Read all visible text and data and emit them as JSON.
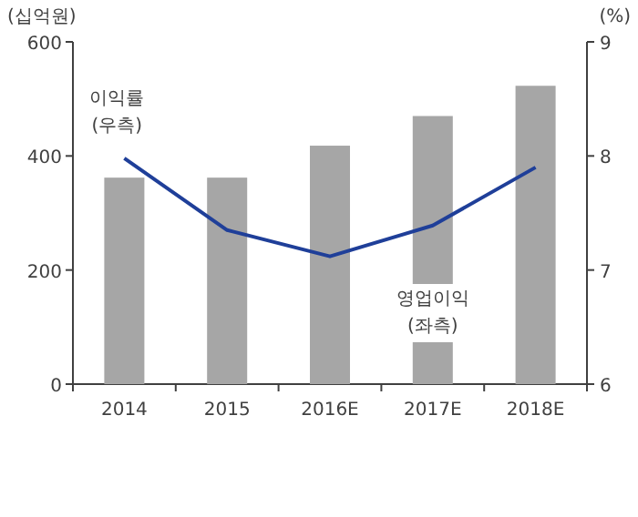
{
  "chart_data": {
    "type": "bar",
    "categories": [
      "2014",
      "2015",
      "2016E",
      "2017E",
      "2018E"
    ],
    "ylabel": "(십억원)",
    "y2label": "(%)",
    "ylim": [
      0,
      600
    ],
    "yticks": [
      0,
      200,
      400,
      600
    ],
    "y2lim": [
      6,
      9
    ],
    "y2ticks": [
      6,
      7,
      8,
      9
    ],
    "grid": false,
    "series": [
      {
        "name": "영업이익 (좌측)",
        "color": "#a6a6a6",
        "values": [
          362,
          362,
          418,
          470,
          523
        ]
      },
      {
        "name": "이익률 (우측)",
        "type": "line",
        "axis": "y2",
        "color": "#1f3f99",
        "values": [
          7.98,
          7.35,
          7.12,
          7.39,
          7.9
        ]
      }
    ]
  }
}
